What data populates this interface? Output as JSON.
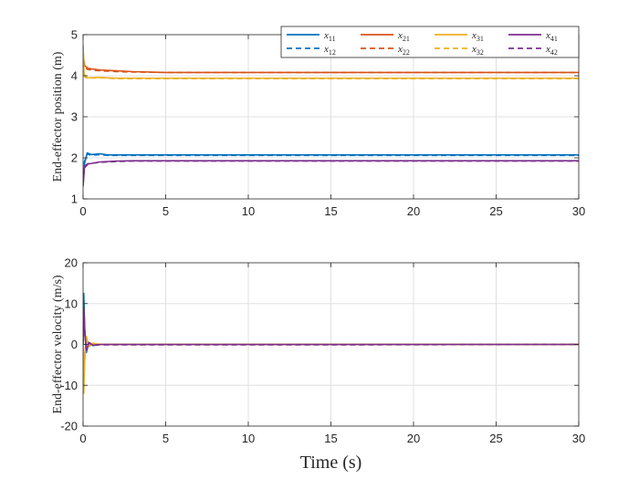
{
  "chart_data": [
    {
      "type": "line",
      "id": "position",
      "title": "",
      "xlabel": "",
      "ylabel": "End-effector position (m)",
      "xlim": [
        0,
        30
      ],
      "ylim": [
        1,
        5
      ],
      "xticks": [
        0,
        5,
        10,
        15,
        20,
        25,
        30
      ],
      "yticks": [
        1,
        2,
        3,
        4,
        5
      ],
      "grid": true,
      "legend_position": "top-right",
      "series": [
        {
          "name": "x11",
          "base": "x",
          "sub": "11",
          "color": "#0072BD",
          "dash": "solid",
          "x": [
            0,
            0.08,
            0.25,
            0.5,
            1,
            1.5,
            30
          ],
          "values": [
            1.35,
            1.85,
            2.12,
            2.08,
            2.1,
            2.07,
            2.07
          ]
        },
        {
          "name": "x12",
          "base": "x",
          "sub": "12",
          "color": "#0072BD",
          "dash": "dashed",
          "x": [
            0,
            0.08,
            0.25,
            0.5,
            1,
            1.5,
            30
          ],
          "values": [
            1.4,
            1.9,
            2.1,
            2.06,
            2.08,
            2.06,
            2.06
          ]
        },
        {
          "name": "x21",
          "base": "x",
          "sub": "21",
          "color": "#D95319",
          "dash": "solid",
          "x": [
            0,
            0.08,
            0.3,
            1,
            2,
            3,
            5,
            30
          ],
          "values": [
            4.5,
            4.25,
            4.18,
            4.14,
            4.12,
            4.1,
            4.08,
            4.08
          ]
        },
        {
          "name": "x22",
          "base": "x",
          "sub": "22",
          "color": "#D95319",
          "dash": "dashed",
          "x": [
            0,
            0.08,
            0.3,
            1,
            2,
            3,
            5,
            30
          ],
          "values": [
            4.6,
            4.2,
            4.15,
            4.12,
            4.1,
            4.09,
            4.08,
            4.08
          ]
        },
        {
          "name": "x31",
          "base": "x",
          "sub": "31",
          "color": "#EDB120",
          "dash": "solid",
          "x": [
            0,
            0.05,
            0.12,
            0.3,
            1,
            2,
            30
          ],
          "values": [
            4.75,
            4.1,
            3.98,
            3.95,
            3.96,
            3.94,
            3.94
          ]
        },
        {
          "name": "x32",
          "base": "x",
          "sub": "32",
          "color": "#EDB120",
          "dash": "dashed",
          "x": [
            0,
            0.05,
            0.12,
            0.3,
            1,
            2,
            30
          ],
          "values": [
            4.7,
            4.05,
            3.96,
            3.94,
            3.95,
            3.93,
            3.93
          ]
        },
        {
          "name": "x41",
          "base": "x",
          "sub": "41",
          "color": "#7E2F8E",
          "dash": "solid",
          "x": [
            0,
            0.08,
            0.3,
            1,
            2,
            3,
            30
          ],
          "values": [
            1.3,
            1.75,
            1.85,
            1.9,
            1.92,
            1.93,
            1.93
          ]
        },
        {
          "name": "x42",
          "base": "x",
          "sub": "42",
          "color": "#7E2F8E",
          "dash": "dashed",
          "x": [
            0,
            0.08,
            0.3,
            1,
            2,
            3,
            30
          ],
          "values": [
            1.35,
            1.8,
            1.86,
            1.89,
            1.91,
            1.92,
            1.92
          ]
        }
      ]
    },
    {
      "type": "line",
      "id": "velocity",
      "title": "",
      "xlabel": "Time (s)",
      "ylabel": "End-effector velocity (m/s)",
      "xlim": [
        0,
        30
      ],
      "ylim": [
        -20,
        20
      ],
      "xticks": [
        0,
        5,
        10,
        15,
        20,
        25,
        30
      ],
      "yticks": [
        -20,
        -10,
        0,
        10,
        20
      ],
      "grid": true,
      "series": [
        {
          "name": "x11",
          "color": "#0072BD",
          "dash": "solid",
          "x": [
            0,
            0.04,
            0.1,
            0.2,
            0.35,
            0.6,
            1,
            30
          ],
          "values": [
            0,
            12.5,
            4,
            -2,
            0.5,
            -0.3,
            0,
            0
          ]
        },
        {
          "name": "x12",
          "color": "#0072BD",
          "dash": "dashed",
          "x": [
            0,
            0.04,
            0.1,
            0.2,
            0.35,
            0.6,
            1,
            30
          ],
          "values": [
            0,
            11,
            3,
            -1.5,
            0.4,
            -0.2,
            0,
            0
          ]
        },
        {
          "name": "x21",
          "color": "#D95319",
          "dash": "solid",
          "x": [
            0,
            0.04,
            0.1,
            0.2,
            0.35,
            0.6,
            1,
            30
          ],
          "values": [
            0,
            -9,
            -3,
            1.5,
            -0.5,
            0.2,
            0,
            0
          ]
        },
        {
          "name": "x22",
          "color": "#D95319",
          "dash": "dashed",
          "x": [
            0,
            0.04,
            0.1,
            0.2,
            0.35,
            0.6,
            1,
            30
          ],
          "values": [
            0,
            -10,
            -2.5,
            1.2,
            -0.4,
            0.2,
            0,
            0
          ]
        },
        {
          "name": "x31",
          "color": "#EDB120",
          "dash": "solid",
          "x": [
            0,
            0.04,
            0.1,
            0.2,
            0.35,
            0.6,
            1,
            30
          ],
          "values": [
            0,
            -12,
            -4,
            2,
            -0.6,
            0.3,
            0,
            0
          ]
        },
        {
          "name": "x32",
          "color": "#EDB120",
          "dash": "dashed",
          "x": [
            0,
            0.04,
            0.1,
            0.2,
            0.35,
            0.6,
            1,
            30
          ],
          "values": [
            0,
            -11,
            -3.5,
            1.8,
            -0.5,
            0.2,
            0,
            0
          ]
        },
        {
          "name": "x41",
          "color": "#7E2F8E",
          "dash": "solid",
          "x": [
            0,
            0.04,
            0.1,
            0.2,
            0.35,
            0.6,
            1,
            30
          ],
          "values": [
            0,
            9,
            3,
            -1.5,
            0.5,
            -0.2,
            0,
            0
          ]
        },
        {
          "name": "x42",
          "color": "#7E2F8E",
          "dash": "dashed",
          "x": [
            0,
            0.04,
            0.1,
            0.2,
            0.35,
            0.6,
            1,
            16,
            30
          ],
          "values": [
            0,
            8,
            2.5,
            -1,
            0.4,
            -0.2,
            -0.1,
            -0.1,
            0
          ]
        }
      ]
    }
  ]
}
